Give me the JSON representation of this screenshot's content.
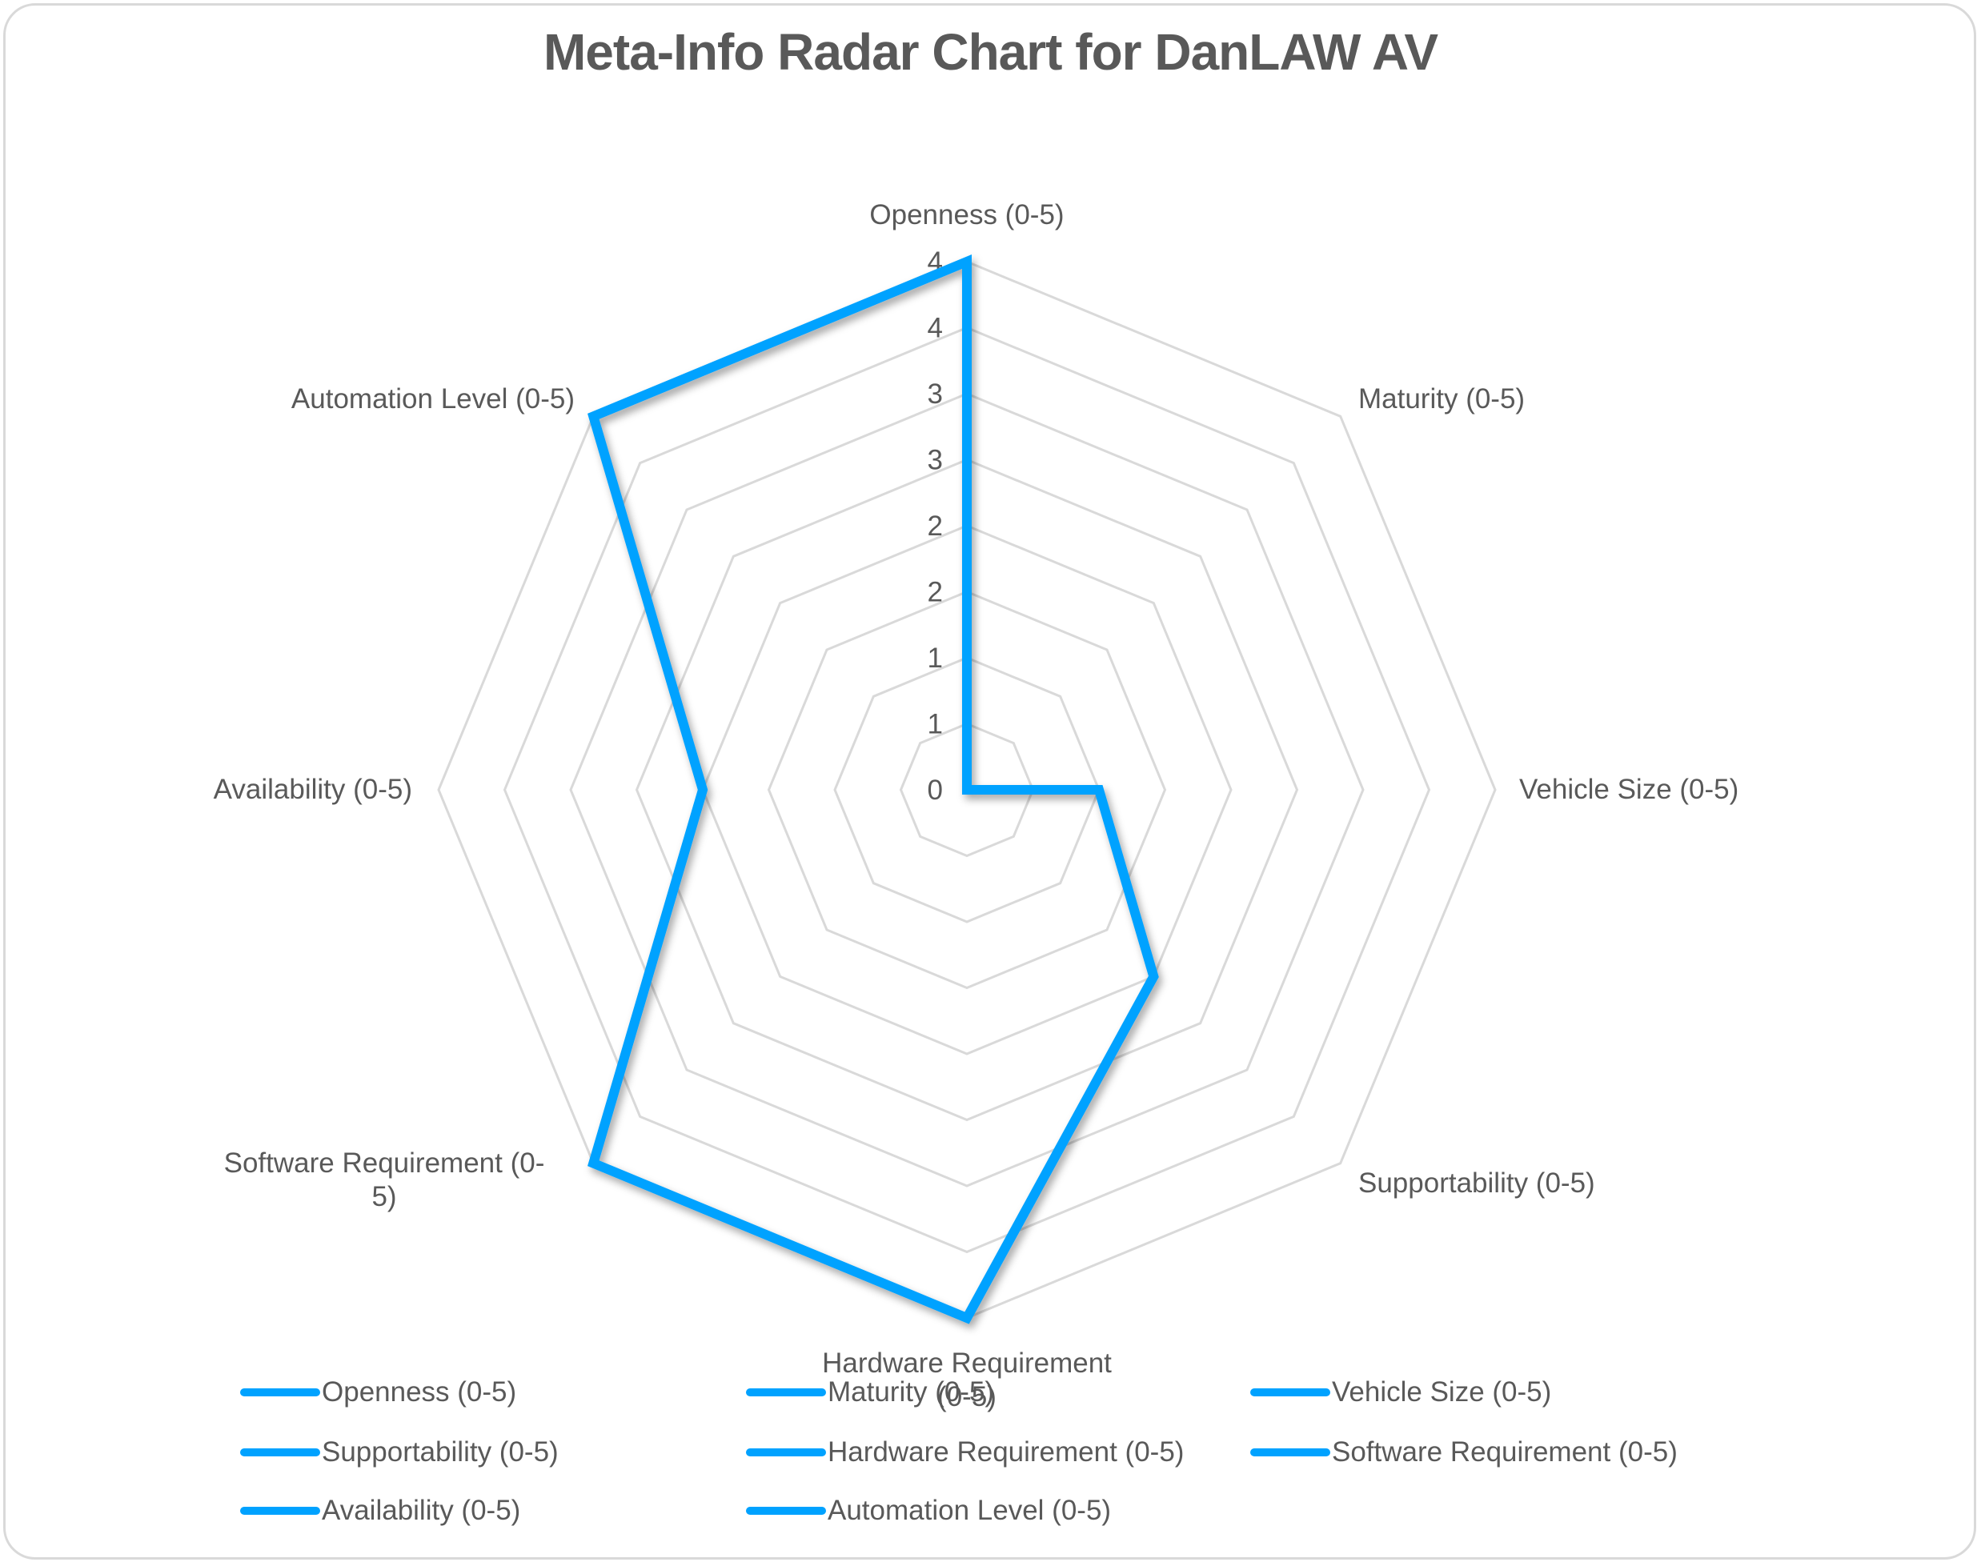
{
  "chart": {
    "title": "Meta-Info Radar Chart for DanLAW AV",
    "series_color": "#00A2FF",
    "grid_color": "#d9d9d9",
    "text_color": "#595959"
  },
  "chart_data": {
    "type": "radar",
    "title": "Meta-Info Radar Chart for DanLAW AV",
    "categories": [
      "Openness (0-5)",
      "Maturity (0-5)",
      "Vehicle Size (0-5)",
      "Supportability (0-5)",
      "Hardware Requirement (0-5)",
      "Software Requirement (0-5)",
      "Availability (0-5)",
      "Automation Level (0-5)"
    ],
    "series": [
      {
        "name": "DanLAW AV",
        "values": [
          4,
          0,
          1,
          2,
          4,
          4,
          2,
          4
        ]
      }
    ],
    "radial_ticks": [
      0,
      0.5,
      1,
      1.5,
      2,
      2.5,
      3,
      3.5,
      4
    ],
    "radial_tick_labels": [
      "0",
      "1",
      "1",
      "2",
      "2",
      "3",
      "3",
      "4",
      "4"
    ],
    "rlim": [
      0,
      4
    ],
    "grid": true,
    "legend_position": "bottom"
  },
  "axis_labels": [
    {
      "lines": [
        "Openness (0-5)"
      ]
    },
    {
      "lines": [
        "Maturity (0-5)"
      ]
    },
    {
      "lines": [
        "Vehicle Size (0-5)"
      ]
    },
    {
      "lines": [
        "Supportability (0-5)"
      ]
    },
    {
      "lines": [
        "Hardware Requirement",
        "(0-5)"
      ]
    },
    {
      "lines": [
        "Software Requirement (0-",
        "5)"
      ]
    },
    {
      "lines": [
        "Availability (0-5)"
      ]
    },
    {
      "lines": [
        "Automation Level (0-5)"
      ]
    }
  ],
  "legend": {
    "items": [
      "Openness (0-5)",
      "Maturity (0-5)",
      "Vehicle Size (0-5)",
      "Supportability (0-5)",
      "Hardware Requirement (0-5)",
      "Software Requirement (0-5)",
      "Availability (0-5)",
      "Automation Level (0-5)"
    ]
  }
}
